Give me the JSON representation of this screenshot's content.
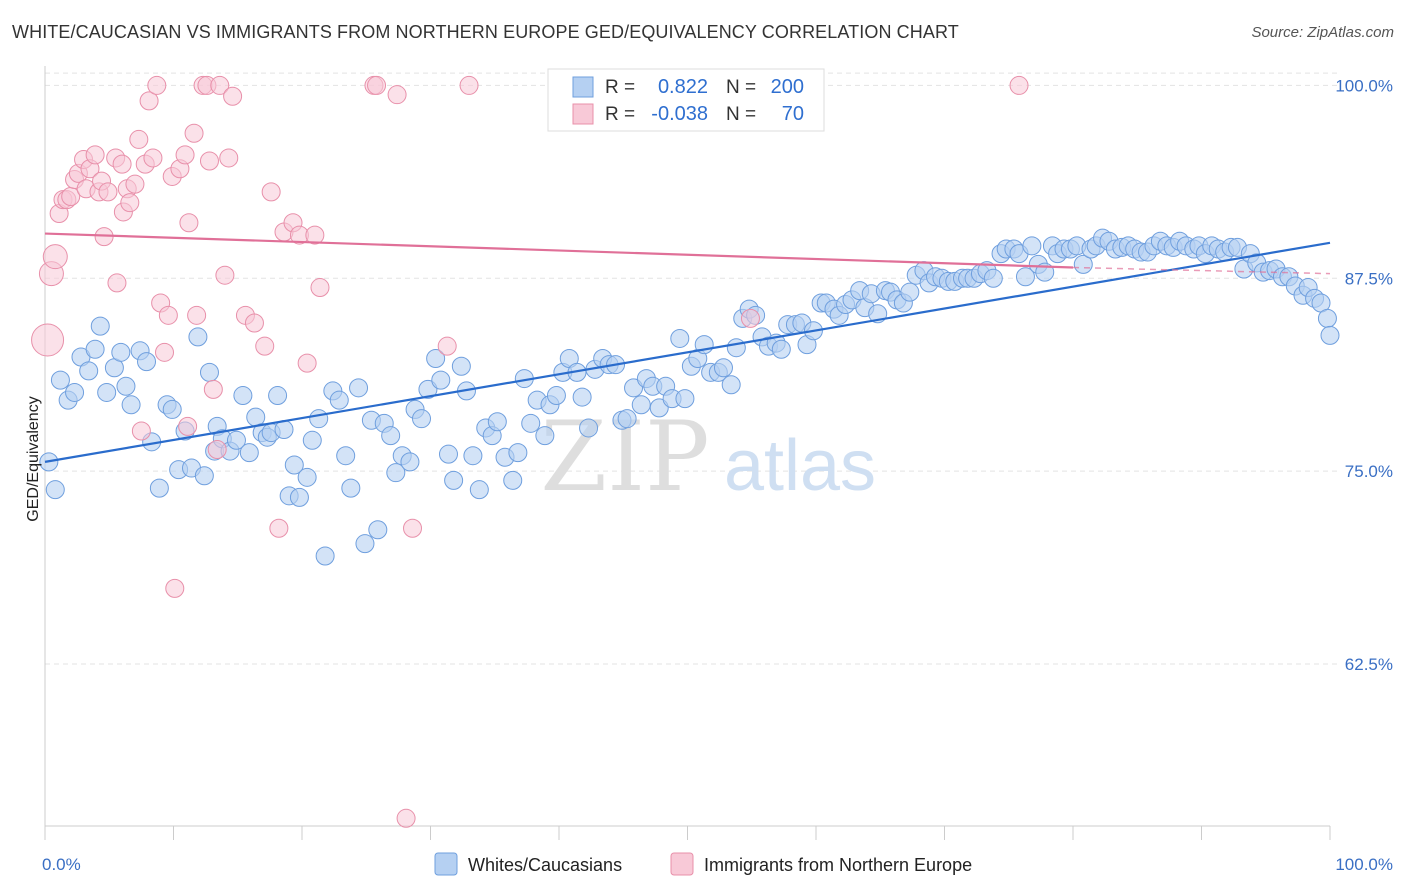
{
  "header": {
    "title": "WHITE/CAUCASIAN VS IMMIGRANTS FROM NORTHERN EUROPE GED/EQUIVALENCY CORRELATION CHART",
    "source": "Source: ZipAtlas.com"
  },
  "watermark": {
    "zip": "ZIP",
    "atlas": "atlas"
  },
  "legend_box": {
    "rows": [
      {
        "r_label": "R =",
        "r_value": "0.822",
        "n_label": "N =",
        "n_value": "200"
      },
      {
        "r_label": "R =",
        "r_value": "-0.038",
        "n_label": "N =",
        "n_value": "70"
      }
    ]
  },
  "chart_data": {
    "type": "scatter",
    "title": "WHITE/CAUCASIAN VS IMMIGRANTS FROM NORTHERN EUROPE GED/EQUIVALENCY CORRELATION CHART",
    "xlabel": "",
    "ylabel": "GED/Equivalency",
    "xlim": [
      0,
      100
    ],
    "ylim": [
      52,
      101
    ],
    "y_ticks": [
      62.5,
      75.0,
      87.5,
      100.0
    ],
    "y_tick_labels": [
      "62.5%",
      "75.0%",
      "87.5%",
      "100.0%"
    ],
    "x_tick_labels": [
      "0.0%",
      "100.0%"
    ],
    "grid": true,
    "legend_position": "top-center",
    "series": [
      {
        "name": "Whites/Caucasians",
        "color": "#7aaee8",
        "line_color": "#2a6ccc",
        "R": 0.822,
        "N": 200,
        "trend": [
          [
            0,
            75.6
          ],
          [
            100,
            89.8
          ]
        ],
        "points": [
          [
            0.3,
            75.6
          ],
          [
            0.8,
            73.8
          ],
          [
            1.2,
            80.9
          ],
          [
            1.8,
            79.6
          ],
          [
            2.3,
            80.1
          ],
          [
            2.8,
            82.4
          ],
          [
            3.4,
            81.5
          ],
          [
            3.9,
            82.9
          ],
          [
            4.3,
            84.4
          ],
          [
            4.8,
            80.1
          ],
          [
            5.4,
            81.7
          ],
          [
            5.9,
            82.7
          ],
          [
            6.3,
            80.5
          ],
          [
            6.7,
            79.3
          ],
          [
            7.4,
            82.8
          ],
          [
            7.9,
            82.1
          ],
          [
            8.3,
            76.9
          ],
          [
            8.9,
            73.9
          ],
          [
            9.5,
            79.3
          ],
          [
            9.9,
            79.0
          ],
          [
            10.4,
            75.1
          ],
          [
            10.9,
            77.6
          ],
          [
            11.4,
            75.2
          ],
          [
            11.9,
            83.7
          ],
          [
            12.4,
            74.7
          ],
          [
            12.8,
            81.4
          ],
          [
            13.2,
            76.3
          ],
          [
            13.4,
            77.9
          ],
          [
            13.8,
            77.1
          ],
          [
            14.4,
            76.3
          ],
          [
            14.9,
            77.0
          ],
          [
            15.4,
            79.9
          ],
          [
            15.9,
            76.2
          ],
          [
            16.4,
            78.5
          ],
          [
            16.9,
            77.5
          ],
          [
            17.3,
            77.2
          ],
          [
            17.6,
            77.5
          ],
          [
            18.1,
            79.9
          ],
          [
            18.6,
            77.7
          ],
          [
            19.0,
            73.4
          ],
          [
            19.4,
            75.4
          ],
          [
            19.8,
            73.3
          ],
          [
            20.4,
            74.6
          ],
          [
            20.8,
            77.0
          ],
          [
            21.3,
            78.4
          ],
          [
            21.8,
            69.5
          ],
          [
            22.4,
            80.2
          ],
          [
            22.9,
            79.6
          ],
          [
            23.4,
            76.0
          ],
          [
            23.8,
            73.9
          ],
          [
            24.4,
            80.4
          ],
          [
            24.9,
            70.3
          ],
          [
            25.4,
            78.3
          ],
          [
            25.9,
            71.2
          ],
          [
            26.4,
            78.1
          ],
          [
            26.9,
            77.3
          ],
          [
            27.3,
            74.9
          ],
          [
            27.8,
            76.0
          ],
          [
            28.4,
            75.6
          ],
          [
            28.8,
            79.0
          ],
          [
            29.3,
            78.4
          ],
          [
            29.8,
            80.3
          ],
          [
            30.4,
            82.3
          ],
          [
            30.8,
            80.9
          ],
          [
            31.4,
            76.1
          ],
          [
            31.8,
            74.4
          ],
          [
            32.4,
            81.8
          ],
          [
            32.8,
            80.2
          ],
          [
            33.3,
            76.0
          ],
          [
            33.8,
            73.8
          ],
          [
            34.3,
            77.8
          ],
          [
            34.8,
            77.3
          ],
          [
            35.2,
            78.2
          ],
          [
            35.8,
            75.9
          ],
          [
            36.4,
            74.4
          ],
          [
            36.8,
            76.2
          ],
          [
            37.3,
            81.0
          ],
          [
            37.8,
            78.1
          ],
          [
            38.3,
            79.6
          ],
          [
            38.9,
            77.3
          ],
          [
            39.3,
            79.3
          ],
          [
            39.8,
            79.9
          ],
          [
            40.3,
            81.4
          ],
          [
            40.8,
            82.3
          ],
          [
            41.4,
            81.4
          ],
          [
            41.8,
            79.8
          ],
          [
            42.3,
            77.8
          ],
          [
            42.8,
            81.6
          ],
          [
            43.4,
            82.3
          ],
          [
            43.9,
            81.9
          ],
          [
            44.4,
            81.9
          ],
          [
            44.9,
            78.3
          ],
          [
            45.3,
            78.4
          ],
          [
            45.8,
            80.4
          ],
          [
            46.4,
            79.3
          ],
          [
            46.8,
            81.0
          ],
          [
            47.3,
            80.5
          ],
          [
            47.8,
            79.1
          ],
          [
            48.3,
            80.5
          ],
          [
            48.8,
            79.7
          ],
          [
            49.4,
            83.6
          ],
          [
            49.8,
            79.7
          ],
          [
            50.3,
            81.8
          ],
          [
            50.8,
            82.3
          ],
          [
            51.3,
            83.2
          ],
          [
            51.8,
            81.4
          ],
          [
            52.4,
            81.4
          ],
          [
            52.8,
            81.7
          ],
          [
            53.4,
            80.6
          ],
          [
            53.8,
            83.0
          ],
          [
            54.3,
            84.9
          ],
          [
            54.8,
            85.5
          ],
          [
            55.3,
            85.1
          ],
          [
            55.8,
            83.7
          ],
          [
            56.3,
            83.1
          ],
          [
            56.9,
            83.3
          ],
          [
            57.3,
            82.9
          ],
          [
            57.8,
            84.5
          ],
          [
            58.4,
            84.5
          ],
          [
            58.9,
            84.6
          ],
          [
            59.3,
            83.2
          ],
          [
            59.8,
            84.1
          ],
          [
            60.4,
            85.9
          ],
          [
            60.8,
            85.9
          ],
          [
            61.4,
            85.5
          ],
          [
            61.8,
            85.1
          ],
          [
            62.3,
            85.8
          ],
          [
            62.8,
            86.1
          ],
          [
            63.4,
            86.7
          ],
          [
            63.8,
            85.6
          ],
          [
            64.3,
            86.5
          ],
          [
            64.8,
            85.2
          ],
          [
            65.4,
            86.7
          ],
          [
            65.8,
            86.6
          ],
          [
            66.3,
            86.1
          ],
          [
            66.8,
            85.9
          ],
          [
            67.3,
            86.6
          ],
          [
            67.8,
            87.7
          ],
          [
            68.4,
            88.0
          ],
          [
            68.8,
            87.2
          ],
          [
            69.3,
            87.6
          ],
          [
            69.8,
            87.5
          ],
          [
            70.3,
            87.3
          ],
          [
            70.8,
            87.3
          ],
          [
            71.4,
            87.5
          ],
          [
            71.8,
            87.5
          ],
          [
            72.3,
            87.5
          ],
          [
            72.8,
            87.8
          ],
          [
            73.3,
            88.0
          ],
          [
            73.8,
            87.5
          ],
          [
            74.4,
            89.1
          ],
          [
            74.8,
            89.4
          ],
          [
            75.4,
            89.4
          ],
          [
            75.8,
            89.1
          ],
          [
            76.3,
            87.6
          ],
          [
            76.8,
            89.6
          ],
          [
            77.3,
            88.4
          ],
          [
            77.8,
            87.9
          ],
          [
            78.4,
            89.6
          ],
          [
            78.8,
            89.1
          ],
          [
            79.3,
            89.4
          ],
          [
            79.8,
            89.4
          ],
          [
            80.3,
            89.6
          ],
          [
            80.8,
            88.4
          ],
          [
            81.4,
            89.4
          ],
          [
            81.8,
            89.6
          ],
          [
            82.3,
            90.1
          ],
          [
            82.8,
            89.9
          ],
          [
            83.3,
            89.4
          ],
          [
            83.8,
            89.5
          ],
          [
            84.3,
            89.6
          ],
          [
            84.8,
            89.4
          ],
          [
            85.3,
            89.2
          ],
          [
            85.8,
            89.2
          ],
          [
            86.3,
            89.6
          ],
          [
            86.8,
            89.9
          ],
          [
            87.3,
            89.6
          ],
          [
            87.8,
            89.5
          ],
          [
            88.3,
            89.9
          ],
          [
            88.8,
            89.6
          ],
          [
            89.4,
            89.4
          ],
          [
            89.8,
            89.6
          ],
          [
            90.3,
            89.1
          ],
          [
            90.8,
            89.6
          ],
          [
            91.3,
            89.4
          ],
          [
            91.8,
            89.2
          ],
          [
            92.3,
            89.5
          ],
          [
            92.8,
            89.5
          ],
          [
            93.3,
            88.1
          ],
          [
            93.8,
            89.1
          ],
          [
            94.3,
            88.5
          ],
          [
            94.8,
            87.9
          ],
          [
            95.3,
            88.0
          ],
          [
            95.8,
            88.1
          ],
          [
            96.3,
            87.6
          ],
          [
            96.8,
            87.6
          ],
          [
            97.3,
            87.0
          ],
          [
            97.9,
            86.4
          ],
          [
            98.3,
            86.9
          ],
          [
            98.8,
            86.2
          ],
          [
            99.3,
            85.9
          ],
          [
            99.8,
            84.9
          ],
          [
            100.0,
            83.8
          ]
        ]
      },
      {
        "name": "Immigrants from Northern Europe",
        "color": "#f3a6bd",
        "line_color": "#e07098",
        "R": -0.038,
        "N": 70,
        "trend": [
          [
            0,
            90.4
          ],
          [
            80,
            88.2
          ]
        ],
        "trend_dashed_to": [
          [
            80,
            88.2
          ],
          [
            100,
            87.8
          ]
        ],
        "points": [
          [
            0.2,
            83.5
          ],
          [
            0.5,
            87.8
          ],
          [
            0.8,
            88.9
          ],
          [
            1.1,
            91.7
          ],
          [
            1.4,
            92.6
          ],
          [
            1.7,
            92.6
          ],
          [
            2.0,
            92.8
          ],
          [
            2.3,
            93.9
          ],
          [
            2.6,
            94.3
          ],
          [
            3.0,
            95.2
          ],
          [
            3.2,
            93.3
          ],
          [
            3.5,
            94.6
          ],
          [
            3.9,
            95.5
          ],
          [
            4.2,
            93.1
          ],
          [
            4.4,
            93.8
          ],
          [
            4.6,
            90.2
          ],
          [
            4.9,
            93.1
          ],
          [
            5.5,
            95.3
          ],
          [
            5.6,
            87.2
          ],
          [
            6.0,
            94.9
          ],
          [
            6.1,
            91.8
          ],
          [
            6.4,
            93.3
          ],
          [
            6.6,
            92.4
          ],
          [
            7.0,
            93.6
          ],
          [
            7.3,
            96.5
          ],
          [
            7.5,
            77.6
          ],
          [
            7.8,
            94.9
          ],
          [
            8.1,
            99.0
          ],
          [
            8.4,
            95.3
          ],
          [
            8.7,
            100.0
          ],
          [
            9.0,
            85.9
          ],
          [
            9.3,
            82.7
          ],
          [
            9.6,
            85.1
          ],
          [
            9.9,
            94.1
          ],
          [
            10.1,
            67.4
          ],
          [
            10.5,
            94.6
          ],
          [
            10.9,
            95.5
          ],
          [
            11.1,
            77.9
          ],
          [
            11.2,
            91.1
          ],
          [
            11.6,
            96.9
          ],
          [
            11.8,
            85.1
          ],
          [
            12.3,
            100.0
          ],
          [
            12.6,
            100.0
          ],
          [
            12.8,
            95.1
          ],
          [
            13.1,
            80.3
          ],
          [
            13.4,
            76.4
          ],
          [
            13.6,
            100.0
          ],
          [
            14.0,
            87.7
          ],
          [
            14.3,
            95.3
          ],
          [
            14.6,
            99.3
          ],
          [
            15.6,
            85.1
          ],
          [
            16.3,
            84.6
          ],
          [
            17.1,
            83.1
          ],
          [
            17.6,
            93.1
          ],
          [
            18.2,
            71.3
          ],
          [
            18.6,
            90.5
          ],
          [
            19.3,
            91.1
          ],
          [
            19.8,
            90.3
          ],
          [
            20.4,
            82.0
          ],
          [
            21.0,
            90.3
          ],
          [
            21.4,
            86.9
          ],
          [
            25.6,
            100.0
          ],
          [
            25.8,
            100.0
          ],
          [
            27.4,
            99.4
          ],
          [
            28.1,
            52.5
          ],
          [
            28.6,
            71.3
          ],
          [
            31.3,
            83.1
          ],
          [
            33.0,
            100.0
          ],
          [
            54.9,
            84.9
          ],
          [
            75.8,
            100.0
          ]
        ]
      }
    ]
  },
  "bottom_legend": {
    "items": [
      {
        "label": "Whites/Caucasians",
        "color": "#b5d0f2",
        "border": "#6f9fde"
      },
      {
        "label": "Immigrants from Northern Europe",
        "color": "#f8c9d7",
        "border": "#e890aa"
      }
    ]
  }
}
